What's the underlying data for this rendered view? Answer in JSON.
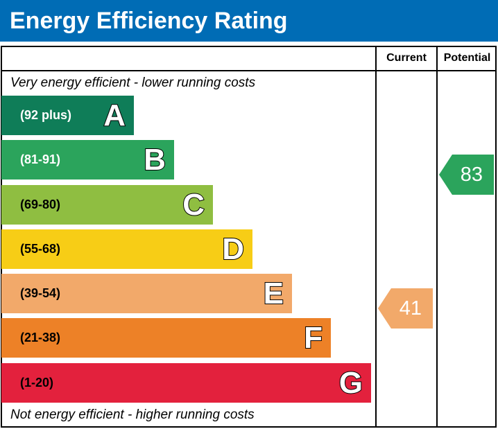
{
  "title": "Energy Efficiency Rating",
  "chart_data": {
    "type": "bar",
    "title": "Energy Efficiency Rating",
    "columns": [
      "Current",
      "Potential"
    ],
    "top_note": "Very energy efficient - lower running costs",
    "bottom_note": "Not energy efficient - higher running costs",
    "bands": [
      {
        "letter": "A",
        "range": "(92 plus)",
        "color": "#0f7d58",
        "text_color": "#ffffff"
      },
      {
        "letter": "B",
        "range": "(81-91)",
        "color": "#2ba45c",
        "text_color": "#ffffff"
      },
      {
        "letter": "C",
        "range": "(69-80)",
        "color": "#8fbe41",
        "text_color": "#000000"
      },
      {
        "letter": "D",
        "range": "(55-68)",
        "color": "#f7cd16",
        "text_color": "#000000"
      },
      {
        "letter": "E",
        "range": "(39-54)",
        "color": "#f2a96a",
        "text_color": "#000000"
      },
      {
        "letter": "F",
        "range": "(21-38)",
        "color": "#ed8127",
        "text_color": "#000000"
      },
      {
        "letter": "G",
        "range": "(1-20)",
        "color": "#e3213d",
        "text_color": "#000000"
      }
    ],
    "current": {
      "value": "41",
      "band": "E"
    },
    "potential": {
      "value": "83",
      "band": "B"
    }
  }
}
